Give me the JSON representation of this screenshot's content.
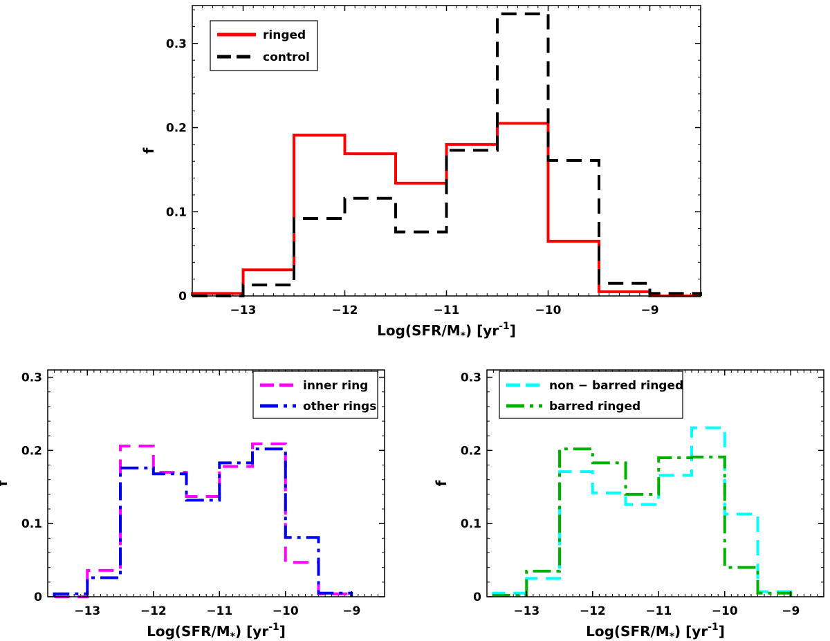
{
  "chart_data": [
    {
      "type": "histogram",
      "xlabel": "Log(SFR/M",
      "xlabel_sub": "*",
      "xlabel_unit": ") [yr",
      "xlabel_exp": "-1",
      "xlabel_end": "]",
      "ylabel": "f",
      "xlim": [
        -13.5,
        -8.5
      ],
      "ylim": [
        0,
        0.345
      ],
      "xticks": [
        -13,
        -12,
        -11,
        -10,
        -9
      ],
      "xtick_labels": [
        "−13",
        "−12",
        "−11",
        "−10",
        "−9"
      ],
      "yticks": [
        0,
        0.1,
        0.2,
        0.3
      ],
      "ytick_labels": [
        "0",
        "0.1",
        "0.2",
        "0.3"
      ],
      "bin_edges": [
        -13.5,
        -13.0,
        -12.5,
        -12.0,
        -11.5,
        -11.0,
        -10.5,
        -10.0,
        -9.5,
        -9.0,
        -8.5
      ],
      "legend_position": "top-left",
      "series": [
        {
          "name": "ringed",
          "color": "#ff0000",
          "style": "solid",
          "values": [
            0.003,
            0.031,
            0.191,
            0.169,
            0.134,
            0.18,
            0.205,
            0.065,
            0.005,
            0.0
          ]
        },
        {
          "name": "control",
          "color": "#000000",
          "style": "dashed",
          "values": [
            0.0,
            0.013,
            0.092,
            0.116,
            0.076,
            0.173,
            0.335,
            0.161,
            0.015,
            0.003
          ]
        }
      ]
    },
    {
      "type": "histogram",
      "xlabel": "Log(SFR/M",
      "xlabel_sub": "*",
      "xlabel_unit": ") [yr",
      "xlabel_exp": "-1",
      "xlabel_end": "]",
      "ylabel": "f",
      "xlim": [
        -13.6,
        -8.5
      ],
      "ylim": [
        0,
        0.31
      ],
      "xticks": [
        -13,
        -12,
        -11,
        -10,
        -9
      ],
      "xtick_labels": [
        "−13",
        "−12",
        "−11",
        "−10",
        "−9"
      ],
      "yticks": [
        0,
        0.1,
        0.2,
        0.3
      ],
      "ytick_labels": [
        "0",
        "0.1",
        "0.2",
        "0.3"
      ],
      "bin_edges": [
        -13.5,
        -13.0,
        -12.5,
        -12.0,
        -11.5,
        -11.0,
        -10.5,
        -10.0,
        -9.5,
        -9.0
      ],
      "legend_position": "top-right",
      "series": [
        {
          "name": "inner ring",
          "color": "#ff00ff",
          "style": "dashed",
          "values": [
            0.0,
            0.036,
            0.206,
            0.17,
            0.137,
            0.178,
            0.209,
            0.047,
            0.004
          ]
        },
        {
          "name": "other rings",
          "color": "#0000ee",
          "style": "dashdot",
          "values": [
            0.004,
            0.026,
            0.176,
            0.168,
            0.132,
            0.183,
            0.202,
            0.081,
            0.005
          ]
        }
      ]
    },
    {
      "type": "histogram",
      "xlabel": "Log(SFR/M",
      "xlabel_sub": "*",
      "xlabel_unit": ") [yr",
      "xlabel_exp": "-1",
      "xlabel_end": "]",
      "ylabel": "f",
      "xlim": [
        -13.6,
        -8.5
      ],
      "ylim": [
        0,
        0.31
      ],
      "xticks": [
        -13,
        -12,
        -11,
        -10,
        -9
      ],
      "xtick_labels": [
        "−13",
        "−12",
        "−11",
        "−10",
        "−9"
      ],
      "yticks": [
        0,
        0.1,
        0.2,
        0.3
      ],
      "ytick_labels": [
        "0",
        "0.1",
        "0.2",
        "0.3"
      ],
      "bin_edges": [
        -13.5,
        -13.0,
        -12.5,
        -12.0,
        -11.5,
        -11.0,
        -10.5,
        -10.0,
        -9.5,
        -9.0
      ],
      "legend_position": "top-left",
      "series": [
        {
          "name": "non − barred ringed",
          "color": "#00ffff",
          "style": "dashed",
          "values": [
            0.005,
            0.025,
            0.171,
            0.142,
            0.126,
            0.166,
            0.231,
            0.113,
            0.007
          ]
        },
        {
          "name": "barred ringed",
          "color": "#00b000",
          "style": "dashdot",
          "values": [
            0.002,
            0.035,
            0.202,
            0.183,
            0.14,
            0.19,
            0.191,
            0.04,
            0.005
          ]
        }
      ]
    }
  ]
}
